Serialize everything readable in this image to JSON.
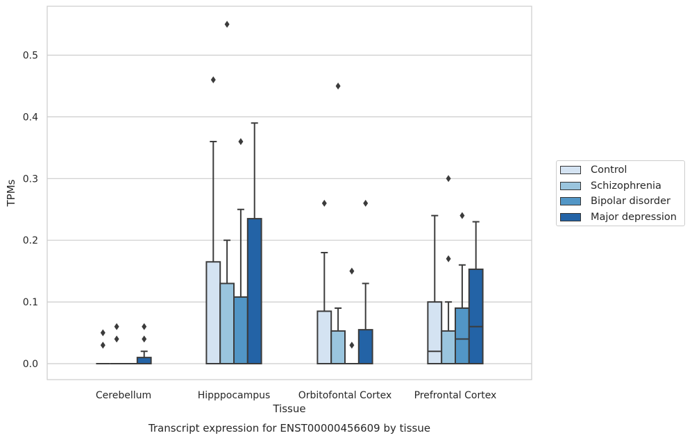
{
  "chart_data": {
    "type": "box",
    "title": "Transcript expression for ENST00000456609 by tissue",
    "xlabel": "Tissue",
    "ylabel": "TPMs",
    "ylim": [
      -0.027,
      0.58
    ],
    "yticks": [
      "0.0",
      "0.1",
      "0.2",
      "0.3",
      "0.4",
      "0.5"
    ],
    "grid": "horizontal",
    "legend_placement": "right, outside plot",
    "categories": [
      "Cerebellum",
      "Hipppocampus",
      "Orbitofontal Cortex",
      "Prefrontal Cortex"
    ],
    "series": [
      {
        "name": "Control",
        "color": "#d4e3f2",
        "boxes": [
          {
            "q1": 0,
            "median": 0,
            "q3": 0,
            "whisker_low": 0,
            "whisker_high": 0,
            "outliers": [
              0.03,
              0.05
            ]
          },
          {
            "q1": 0,
            "median": 0,
            "q3": 0.165,
            "whisker_low": 0,
            "whisker_high": 0.36,
            "outliers": [
              0.46
            ]
          },
          {
            "q1": 0,
            "median": 0,
            "q3": 0.085,
            "whisker_low": 0,
            "whisker_high": 0.18,
            "outliers": [
              0.26
            ]
          },
          {
            "q1": 0,
            "median": 0.02,
            "q3": 0.1,
            "whisker_low": 0,
            "whisker_high": 0.24,
            "outliers": []
          }
        ]
      },
      {
        "name": "Schizophrenia",
        "color": "#9ac5de",
        "boxes": [
          {
            "q1": 0,
            "median": 0,
            "q3": 0,
            "whisker_low": 0,
            "whisker_high": 0,
            "outliers": [
              0.04,
              0.06
            ]
          },
          {
            "q1": 0,
            "median": 0,
            "q3": 0.13,
            "whisker_low": 0,
            "whisker_high": 0.2,
            "outliers": [
              0.55
            ]
          },
          {
            "q1": 0,
            "median": 0,
            "q3": 0.053,
            "whisker_low": 0,
            "whisker_high": 0.09,
            "outliers": [
              0.45
            ]
          },
          {
            "q1": 0,
            "median": 0,
            "q3": 0.053,
            "whisker_low": 0,
            "whisker_high": 0.1,
            "outliers": [
              0.3,
              0.17
            ]
          }
        ]
      },
      {
        "name": "Bipolar disorder",
        "color": "#5296c6",
        "boxes": [
          {
            "q1": 0,
            "median": 0,
            "q3": 0,
            "whisker_low": 0,
            "whisker_high": 0,
            "outliers": []
          },
          {
            "q1": 0,
            "median": 0,
            "q3": 0.108,
            "whisker_low": 0,
            "whisker_high": 0.25,
            "outliers": [
              0.36
            ]
          },
          {
            "q1": 0,
            "median": 0,
            "q3": 0,
            "whisker_low": 0,
            "whisker_high": 0,
            "outliers": [
              0.03,
              0.15
            ]
          },
          {
            "q1": 0,
            "median": 0.04,
            "q3": 0.09,
            "whisker_low": 0,
            "whisker_high": 0.16,
            "outliers": [
              0.24
            ]
          }
        ]
      },
      {
        "name": "Major depression",
        "color": "#2363a6",
        "boxes": [
          {
            "q1": 0,
            "median": 0,
            "q3": 0.01,
            "whisker_low": 0,
            "whisker_high": 0.02,
            "outliers": [
              0.04,
              0.06
            ]
          },
          {
            "q1": 0,
            "median": 0,
            "q3": 0.235,
            "whisker_low": 0,
            "whisker_high": 0.39,
            "outliers": []
          },
          {
            "q1": 0,
            "median": 0,
            "q3": 0.055,
            "whisker_low": 0,
            "whisker_high": 0.13,
            "outliers": [
              0.26
            ]
          },
          {
            "q1": 0,
            "median": 0.06,
            "q3": 0.153,
            "whisker_low": 0,
            "whisker_high": 0.23,
            "outliers": []
          }
        ]
      }
    ]
  }
}
